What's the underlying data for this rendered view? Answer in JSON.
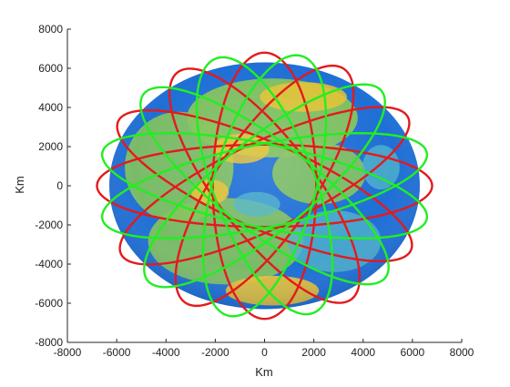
{
  "chart_data": {
    "type": "scatter",
    "title": "",
    "xlabel": "Km",
    "ylabel": "Km",
    "xlim": [
      -8000,
      8000
    ],
    "ylim": [
      -8000,
      8000
    ],
    "xticks": [
      -8000,
      -6000,
      -4000,
      -2000,
      0,
      2000,
      4000,
      6000,
      8000
    ],
    "yticks": [
      -8000,
      -6000,
      -4000,
      -2000,
      0,
      2000,
      4000,
      6000,
      8000
    ],
    "xtick_labels": [
      "-8000",
      "-6000",
      "-4000",
      "-2000",
      "0",
      "2000",
      "4000",
      "6000",
      "8000"
    ],
    "ytick_labels": [
      "-8000",
      "-6000",
      "-4000",
      "-2000",
      "0",
      "2000",
      "4000",
      "6000",
      "8000"
    ],
    "grid": false,
    "legend": "none",
    "globe": {
      "center": [
        0,
        0
      ],
      "radius_km": 6300,
      "colors": {
        "ocean": "#1f6fd6",
        "land_green": "#84c35c",
        "land_yellow": "#e8c234",
        "land_cyan": "#4fb3c9"
      }
    },
    "orbit_groups": [
      {
        "color": "#e41a1c",
        "semi_major_km": 6800,
        "semi_minor_km": 2100,
        "tilt_deg": [
          0,
          32,
          63,
          90,
          120,
          150
        ]
      },
      {
        "color": "#22ee22",
        "semi_major_km": 6800,
        "semi_minor_km": 2100,
        "tilt_deg": [
          15,
          47,
          78,
          106,
          135,
          165
        ]
      }
    ]
  }
}
